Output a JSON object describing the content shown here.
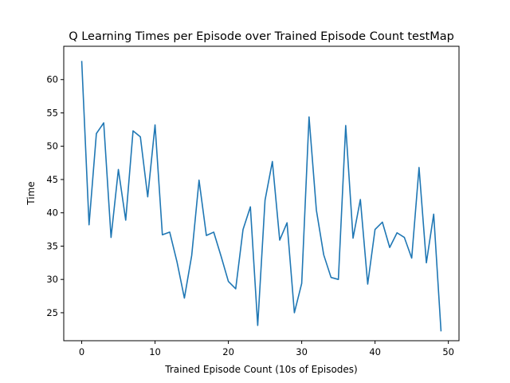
{
  "chart_data": {
    "type": "line",
    "title": "Q Learning Times per Episode over Trained Episode Count testMap",
    "xlabel": "Trained Episode Count (10s of Episodes)",
    "ylabel": "Time",
    "xlim": [
      -2.45,
      51.45
    ],
    "ylim": [
      20.8,
      65.0
    ],
    "xticks": [
      0,
      10,
      20,
      30,
      40,
      50
    ],
    "yticks": [
      25,
      30,
      35,
      40,
      45,
      50,
      55,
      60
    ],
    "grid": false,
    "legend": "none",
    "series": [
      {
        "color": "#1f77b4",
        "x": [
          0,
          1,
          2,
          3,
          4,
          5,
          6,
          7,
          8,
          9,
          10,
          11,
          12,
          13,
          14,
          15,
          16,
          17,
          18,
          19,
          20,
          21,
          22,
          23,
          24,
          25,
          26,
          27,
          28,
          29,
          30,
          31,
          32,
          33,
          34,
          35,
          36,
          37,
          38,
          39,
          40,
          41,
          42,
          43,
          44,
          45,
          46,
          47,
          48,
          49
        ],
        "values": [
          62.8,
          38.2,
          51.9,
          53.5,
          36.3,
          46.5,
          38.9,
          52.3,
          51.4,
          42.4,
          53.2,
          36.7,
          37.1,
          32.6,
          27.2,
          33.6,
          44.9,
          36.6,
          37.1,
          33.5,
          29.7,
          28.6,
          37.5,
          40.9,
          23.1,
          41.9,
          47.7,
          35.9,
          38.5,
          25.0,
          29.4,
          54.4,
          40.4,
          33.7,
          30.3,
          30.0,
          53.1,
          36.2,
          42.0,
          29.3,
          37.5,
          38.6,
          34.8,
          37.0,
          36.3,
          33.2,
          46.8,
          32.5,
          39.8,
          22.2
        ]
      }
    ]
  }
}
